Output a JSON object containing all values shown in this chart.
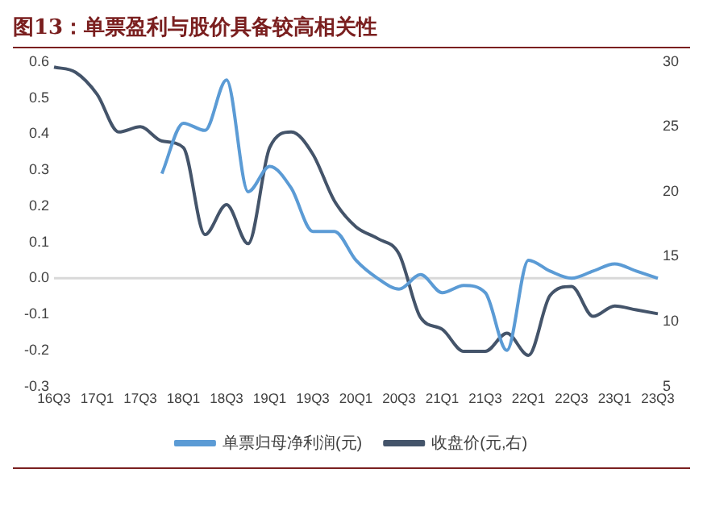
{
  "chart_data": {
    "type": "line",
    "title": "图13：单票盈利与股价具备较高相关性",
    "categories": [
      "16Q3",
      null,
      "17Q1",
      null,
      "17Q3",
      null,
      "18Q1",
      null,
      "18Q3",
      null,
      "19Q1",
      null,
      "19Q3",
      null,
      "20Q1",
      null,
      "20Q3",
      null,
      "21Q1",
      null,
      "21Q3",
      null,
      "22Q1",
      null,
      "22Q3",
      null,
      "23Q1",
      null,
      "23Q3"
    ],
    "series": [
      {
        "name": "单票归母净利润(元)",
        "color": "#5b9bd5",
        "values": [
          null,
          null,
          null,
          null,
          null,
          0.29,
          0.43,
          0.41,
          0.55,
          0.24,
          0.31,
          0.25,
          0.13,
          0.13,
          0.05,
          0.0,
          -0.03,
          0.01,
          -0.04,
          -0.02,
          -0.04,
          -0.2,
          0.05,
          0.02,
          0.0,
          0.02,
          0.04,
          0.02,
          0.0
        ]
      },
      {
        "name": "收盘价(元,右)",
        "color": "#44546a",
        "axis": "y2",
        "values": [
          29.6,
          29.2,
          27.5,
          24.6,
          25.0,
          23.9,
          23.4,
          16.7,
          19.0,
          16.0,
          23.4,
          24.6,
          22.9,
          19.3,
          17.3,
          16.4,
          15.2,
          10.3,
          9.4,
          7.7,
          7.7,
          9.1,
          7.4,
          12.0,
          12.7,
          10.4,
          11.2,
          10.9,
          10.6
        ]
      }
    ],
    "ylim": [
      -0.3,
      0.6
    ],
    "yticks": [
      -0.3,
      -0.2,
      -0.1,
      {
        "value": 0,
        "label": "0.0"
      },
      0.1,
      0.2,
      0.3,
      0.4,
      0.5,
      0.6
    ],
    "y2lim": [
      5,
      30
    ],
    "y2ticks": [
      5,
      10,
      15,
      20,
      25,
      30
    ],
    "ref_lines": [
      {
        "axis": "y",
        "value": 0,
        "color": "#d9d9d9"
      }
    ],
    "grid": false,
    "legend": "bottom",
    "marker": "none",
    "line_style": "solid"
  }
}
